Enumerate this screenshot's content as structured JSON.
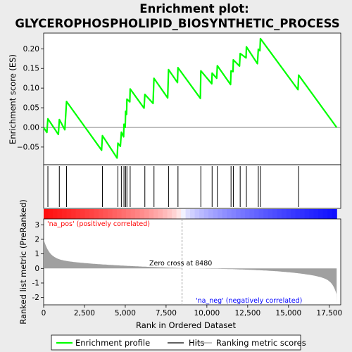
{
  "chart_data": {
    "type": "line",
    "title": [
      "Enrichment plot:",
      "GLYCEROPHOSPHOLIPID_BIOSYNTHETIC_PROCESS"
    ],
    "es_panel": {
      "ylabel": "Enrichment score (ES)",
      "ylim": [
        -0.095,
        0.24
      ],
      "yticks": [
        -0.05,
        0.0,
        0.05,
        0.1,
        0.15,
        0.2
      ],
      "ytick_labels": [
        "−0.05",
        "0.00",
        "0.05",
        "0.10",
        "0.15",
        "0.20"
      ],
      "zero_line": true
    },
    "rank_panel": {
      "ylabel": "Ranked list metric (PreRanked)",
      "ylim": [
        -2.5,
        3.4
      ],
      "yticks": [
        -2,
        -1,
        0,
        1,
        2,
        3
      ],
      "ytick_labels": [
        "-2",
        "-1",
        "0",
        "1",
        "2",
        "3"
      ],
      "zero_cross_label": "Zero cross at 8480",
      "zero_cross": 8480,
      "pos_label": "'na_pos' (positively correlated)",
      "neg_label": "'na_neg' (negatively correlated)"
    },
    "xlabel": "Rank in Ordered Dataset",
    "xlim": [
      0,
      18200
    ],
    "xticks": [
      0,
      2500,
      5000,
      7500,
      10000,
      12500,
      15000,
      17500
    ],
    "xtick_labels": [
      "0",
      "2,500",
      "5,000",
      "7,500",
      "10,000",
      "12,500",
      "15,000",
      "17,500"
    ],
    "n_genes": 17950,
    "hits": [
      260,
      960,
      1400,
      3600,
      4550,
      4760,
      4920,
      5020,
      5100,
      5300,
      6200,
      6760,
      7650,
      8230,
      9630,
      10320,
      10640,
      11480,
      11620,
      12040,
      12420,
      13150,
      13280,
      15620
    ],
    "es_curve": {
      "x": [
        0,
        200,
        260,
        900,
        960,
        1300,
        1400,
        3550,
        3600,
        4500,
        4550,
        4700,
        4760,
        4900,
        4920,
        5000,
        5020,
        5080,
        5100,
        5280,
        5300,
        6150,
        6200,
        6700,
        6760,
        7600,
        7650,
        8200,
        8230,
        9600,
        9630,
        10300,
        10320,
        10600,
        10640,
        11450,
        11480,
        11600,
        11620,
        12000,
        12040,
        12400,
        12420,
        13100,
        13150,
        13250,
        13280,
        15580,
        15620,
        17950
      ],
      "y": [
        0.0,
        -0.013,
        0.022,
        -0.018,
        0.02,
        -0.006,
        0.066,
        -0.058,
        -0.021,
        -0.078,
        -0.04,
        -0.048,
        -0.012,
        -0.024,
        0.008,
        0.0,
        0.041,
        0.033,
        0.072,
        0.065,
        0.098,
        0.049,
        0.084,
        0.061,
        0.125,
        0.075,
        0.147,
        0.114,
        0.152,
        0.074,
        0.144,
        0.111,
        0.138,
        0.125,
        0.157,
        0.109,
        0.144,
        0.142,
        0.172,
        0.156,
        0.188,
        0.177,
        0.205,
        0.162,
        0.199,
        0.195,
        0.226,
        0.096,
        0.133,
        0.0
      ]
    },
    "legend": [
      "Enrichment profile",
      "Hits",
      "Ranking metric scores"
    ],
    "colors": {
      "profile": "#00ff00",
      "hits": "#000000",
      "metric": "#a0a0a0",
      "zero_line": "#7f7f7f",
      "pos_text": "#ff0000",
      "neg_text": "#0000ff"
    }
  }
}
